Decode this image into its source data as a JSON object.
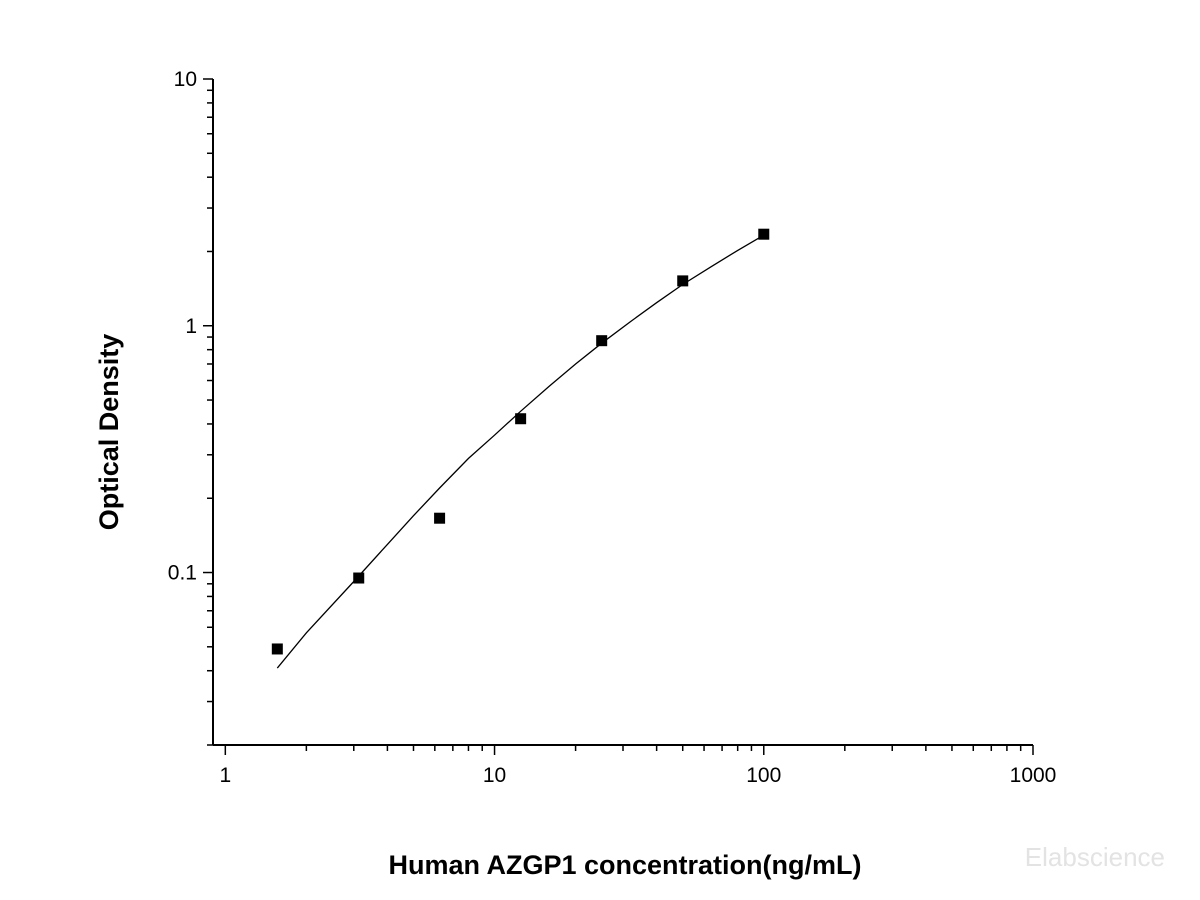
{
  "chart_data": {
    "type": "scatter",
    "xlabel": "Human AZGP1 concentration(ng/mL)",
    "ylabel": "Optical Density",
    "x_scale": "log",
    "y_scale": "log",
    "xlim": [
      0.9,
      1000
    ],
    "ylim": [
      0.02,
      10
    ],
    "x_ticks": [
      "1",
      "10",
      "100",
      "1000"
    ],
    "y_ticks": [
      "0.1",
      "1",
      "10"
    ],
    "grid": false,
    "legend": "none",
    "marker": "square",
    "marker_color": "#000000",
    "curve_color": "#000000",
    "series": [
      {
        "points": [
          {
            "x": 1.56,
            "y": 0.049
          },
          {
            "x": 3.13,
            "y": 0.095
          },
          {
            "x": 6.25,
            "y": 0.166
          },
          {
            "x": 12.5,
            "y": 0.42
          },
          {
            "x": 25,
            "y": 0.87
          },
          {
            "x": 50,
            "y": 1.52
          },
          {
            "x": 100,
            "y": 2.35
          }
        ]
      }
    ],
    "fit_curve": {
      "x": [
        1.56,
        2,
        3,
        4,
        5,
        6.25,
        8,
        10,
        12.5,
        16,
        20,
        25,
        32,
        40,
        50,
        64,
        80,
        100
      ],
      "y": [
        0.041,
        0.057,
        0.092,
        0.13,
        0.17,
        0.22,
        0.29,
        0.36,
        0.45,
        0.57,
        0.7,
        0.85,
        1.04,
        1.24,
        1.47,
        1.74,
        2.02,
        2.33
      ]
    }
  },
  "watermark": "Elabscience"
}
